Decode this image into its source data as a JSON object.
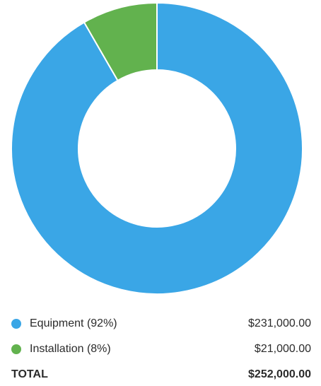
{
  "chart_data": {
    "type": "pie",
    "title": "",
    "categories": [
      "Equipment (92%)",
      "Installation (8%)"
    ],
    "values": [
      231000,
      21000
    ],
    "value_labels": [
      "$231,000.00",
      "$21,000.00"
    ],
    "colors": [
      "#3aa6e6",
      "#62b24e"
    ],
    "donut": true,
    "legend": "bottom"
  },
  "total": {
    "label": "TOTAL",
    "value": "$252,000.00"
  }
}
